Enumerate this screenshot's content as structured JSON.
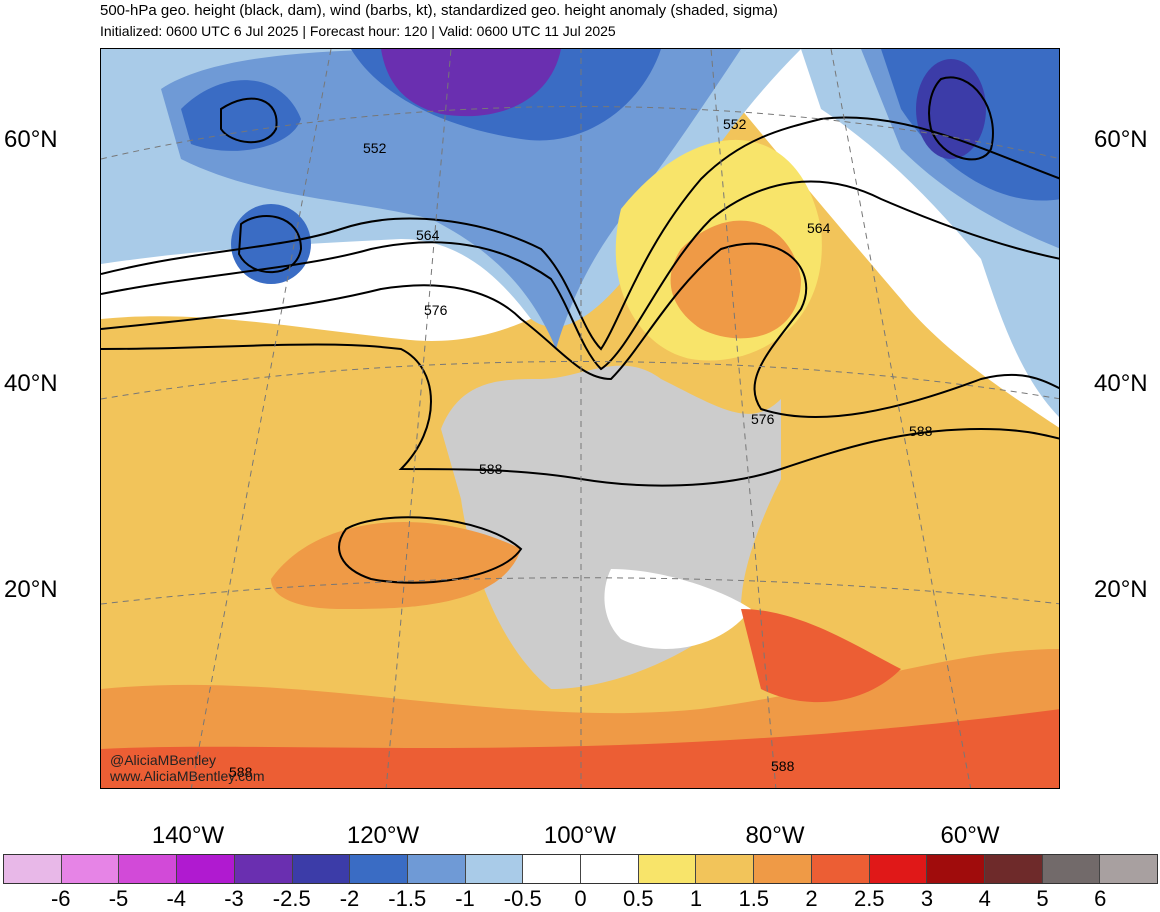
{
  "header": {
    "title": "500-hPa geo. height (black, dam), wind (barbs, kt), standardized geo. height anomaly (shaded, sigma)",
    "subtitle": "Initialized: 0600 UTC 6 Jul 2025 | Forecast hour: 120 | Valid: 0600 UTC 11 Jul 2025"
  },
  "map": {
    "lat_labels": [
      "60°N",
      "40°N",
      "20°N"
    ],
    "lon_labels": [
      "140°W",
      "120°W",
      "100°W",
      "80°W",
      "60°W"
    ],
    "contour_labels": [
      "552",
      "552",
      "564",
      "564",
      "576",
      "576",
      "588",
      "588",
      "588",
      "588"
    ],
    "credit_handle": "@AliciaMBentley",
    "credit_url": "www.AliciaMBentley.com"
  },
  "colorbar": {
    "labels": [
      "-6",
      "-5",
      "-4",
      "-3",
      "-2.5",
      "-2",
      "-1.5",
      "-1",
      "-0.5",
      "0",
      "0.5",
      "1",
      "1.5",
      "2",
      "2.5",
      "3",
      "4",
      "5",
      "6"
    ],
    "colors": [
      "#e8b8e8",
      "#e684e6",
      "#d24ad8",
      "#b01ad0",
      "#6a2fb0",
      "#3c3ca8",
      "#3a6cc4",
      "#6f9ad6",
      "#a9cbe8",
      "#ffffff",
      "#ffffff",
      "#f8e46a",
      "#f2c45a",
      "#ef9a46",
      "#ec5e34",
      "#e01818",
      "#a00c0c",
      "#6e2a2a",
      "#726a6a",
      "#a8a0a0"
    ]
  }
}
